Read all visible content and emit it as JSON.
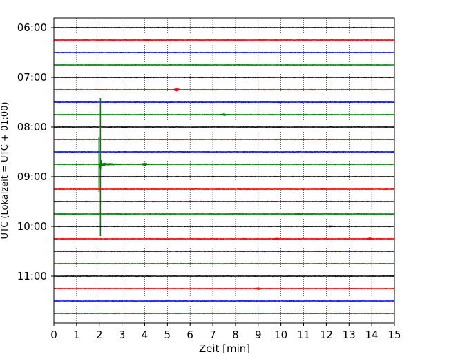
{
  "chart_data": {
    "type": "line",
    "xlabel": "Zeit  [min]",
    "ylabel": "UTC (Lokalzeit = UTC + 01:00)",
    "xlim": [
      0,
      15
    ],
    "x_ticks": [
      "0",
      "1",
      "2",
      "3",
      "4",
      "5",
      "6",
      "7",
      "8",
      "9",
      "10",
      "11",
      "12",
      "13",
      "14",
      "15"
    ],
    "y_tick_labels": [
      "06:00",
      "07:00",
      "08:00",
      "09:00",
      "10:00",
      "11:00"
    ],
    "grid": "vertical dotted at each minute",
    "trace_interval_min": 15,
    "start_time": "06:00",
    "color_cycle": [
      "#000000",
      "#ff0000",
      "#0000ff",
      "#008000"
    ],
    "traces": [
      {
        "time": "06:00",
        "color": "#000000",
        "noise": 0.5
      },
      {
        "time": "06:15",
        "color": "#ff0000",
        "noise": 0.6,
        "events": [
          {
            "t": 4.1,
            "amp": 0.9
          }
        ]
      },
      {
        "time": "06:30",
        "color": "#0000ff",
        "noise": 0.5
      },
      {
        "time": "06:45",
        "color": "#008000",
        "noise": 0.55
      },
      {
        "time": "07:00",
        "color": "#000000",
        "noise": 0.5
      },
      {
        "time": "07:15",
        "color": "#ff0000",
        "noise": 0.6,
        "events": [
          {
            "t": 5.4,
            "amp": 1.4
          }
        ]
      },
      {
        "time": "07:30",
        "color": "#0000ff",
        "noise": 0.55
      },
      {
        "time": "07:45",
        "color": "#008000",
        "noise": 0.6,
        "events": [
          {
            "t": 7.5,
            "amp": 0.9
          }
        ]
      },
      {
        "time": "08:00",
        "color": "#000000",
        "noise": 0.5
      },
      {
        "time": "08:15",
        "color": "#ff0000",
        "noise": 0.6
      },
      {
        "time": "08:30",
        "color": "#0000ff",
        "noise": 0.5
      },
      {
        "time": "08:45",
        "color": "#008000",
        "noise": 0.6,
        "quake": {
          "t": 2.05,
          "amp": 7.5
        },
        "events": [
          {
            "t": 4.0,
            "amp": 1.6
          }
        ]
      },
      {
        "time": "09:00",
        "color": "#000000",
        "noise": 0.5
      },
      {
        "time": "09:15",
        "color": "#ff0000",
        "noise": 0.55
      },
      {
        "time": "09:30",
        "color": "#0000ff",
        "noise": 0.55
      },
      {
        "time": "09:45",
        "color": "#008000",
        "noise": 0.6,
        "events": [
          {
            "t": 10.8,
            "amp": 0.9
          }
        ]
      },
      {
        "time": "10:00",
        "color": "#000000",
        "noise": 0.5,
        "events": [
          {
            "t": 12.2,
            "amp": 0.8
          }
        ]
      },
      {
        "time": "10:15",
        "color": "#ff0000",
        "noise": 0.6,
        "events": [
          {
            "t": 9.8,
            "amp": 1.0
          },
          {
            "t": 13.9,
            "amp": 0.9
          }
        ]
      },
      {
        "time": "10:30",
        "color": "#0000ff",
        "noise": 0.55
      },
      {
        "time": "10:45",
        "color": "#008000",
        "noise": 0.55
      },
      {
        "time": "11:00",
        "color": "#000000",
        "noise": 0.5
      },
      {
        "time": "11:15",
        "color": "#ff0000",
        "noise": 0.55,
        "events": [
          {
            "t": 9.0,
            "amp": 1.2
          }
        ]
      },
      {
        "time": "11:30",
        "color": "#0000ff",
        "noise": 0.5
      },
      {
        "time": "11:45",
        "color": "#008000",
        "noise": 0.55
      }
    ]
  }
}
